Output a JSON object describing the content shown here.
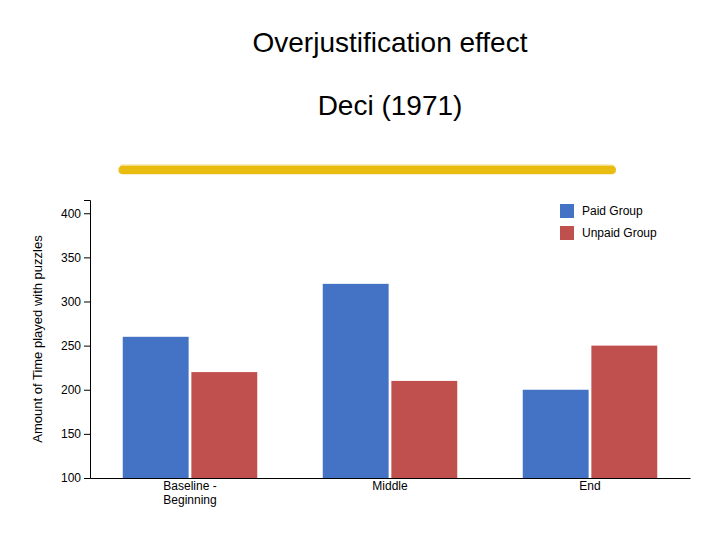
{
  "chart_data": {
    "type": "bar",
    "title": "Overjustification effect",
    "subtitle": "Deci (1971)",
    "categories": [
      "Baseline -\nBeginning",
      "Middle",
      "End"
    ],
    "series": [
      {
        "name": "Paid Group",
        "color": "#4472C4",
        "values": [
          260,
          320,
          200
        ]
      },
      {
        "name": "Unpaid Group",
        "color": "#C0504D",
        "values": [
          220,
          210,
          250
        ]
      }
    ],
    "y_label": "Amount of Time played with puzzles",
    "ylim": [
      100,
      415
    ],
    "yticks": [
      100,
      150,
      200,
      250,
      300,
      350,
      400
    ],
    "legend": "upper right"
  }
}
